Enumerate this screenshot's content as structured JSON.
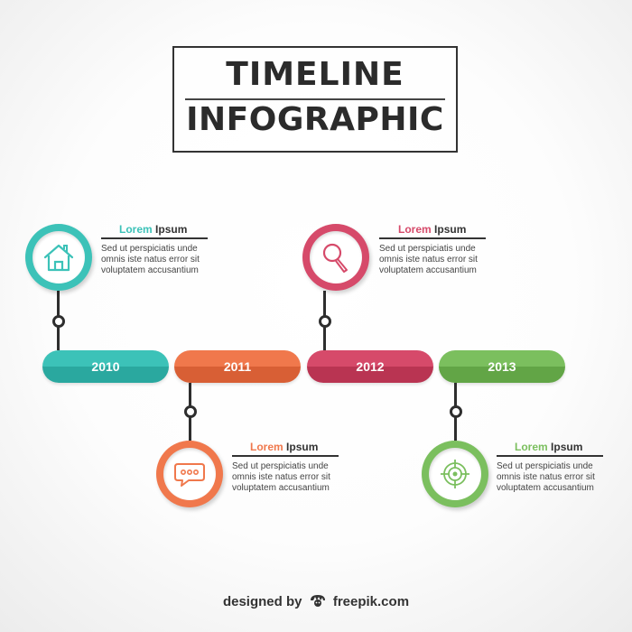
{
  "title": {
    "line1": "TIMELINE",
    "line2": "INFOGRAPHIC"
  },
  "events": [
    {
      "year": "2010",
      "label_color_word": "Lorem",
      "label_word": "Ipsum",
      "description": "Sed ut perspiciatis unde omnis iste natus error sit voluptatem accusantium",
      "icon": "house-icon",
      "color": "#3cc2b8",
      "dark": "#2aa89f"
    },
    {
      "year": "2011",
      "label_color_word": "Lorem",
      "label_word": "Ipsum",
      "description": "Sed ut perspiciatis unde omnis iste natus error sit voluptatem accusantium",
      "icon": "speech-bubble-icon",
      "color": "#f0784c",
      "dark": "#d85f35"
    },
    {
      "year": "2012",
      "label_color_word": "Lorem",
      "label_word": "Ipsum",
      "description": "Sed ut perspiciatis unde omnis iste natus error sit voluptatem accusantium",
      "icon": "magnifier-icon",
      "color": "#d64a6a",
      "dark": "#b93452"
    },
    {
      "year": "2013",
      "label_color_word": "Lorem",
      "label_word": "Ipsum",
      "description": "Sed ut perspiciatis unde omnis iste natus error sit voluptatem accusantium",
      "icon": "target-icon",
      "color": "#7bbf5e",
      "dark": "#62a546"
    }
  ],
  "credit": {
    "prefix": "designed by",
    "brand": "freepik.com"
  }
}
